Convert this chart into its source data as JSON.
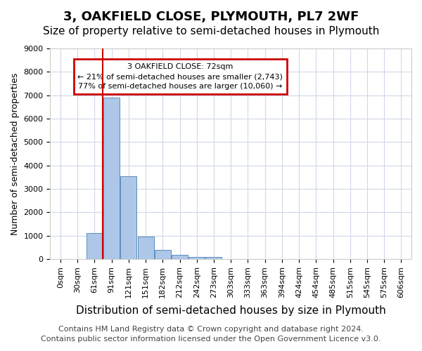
{
  "title1": "3, OAKFIELD CLOSE, PLYMOUTH, PL7 2WF",
  "title2": "Size of property relative to semi-detached houses in Plymouth",
  "xlabel": "Distribution of semi-detached houses by size in Plymouth",
  "ylabel": "Number of semi-detached properties",
  "categories": [
    "0sqm",
    "30sqm",
    "61sqm",
    "91sqm",
    "121sqm",
    "151sqm",
    "182sqm",
    "212sqm",
    "242sqm",
    "273sqm",
    "303sqm",
    "333sqm",
    "363sqm",
    "394sqm",
    "424sqm",
    "454sqm",
    "485sqm",
    "515sqm",
    "545sqm",
    "575sqm",
    "606sqm"
  ],
  "values": [
    0,
    0,
    1100,
    6900,
    3550,
    970,
    400,
    190,
    100,
    80,
    0,
    0,
    0,
    0,
    0,
    0,
    0,
    0,
    0,
    0,
    0
  ],
  "bar_color": "#aec6e8",
  "bar_edge_color": "#5a8fc0",
  "red_line_x": 2,
  "annotation_title": "3 OAKFIELD CLOSE: 72sqm",
  "annotation_line1": "← 21% of semi-detached houses are smaller (2,743)",
  "annotation_line2": "77% of semi-detached houses are larger (10,060) →",
  "annotation_box_color": "#ffffff",
  "annotation_box_edge_color": "#cc0000",
  "red_line_color": "#cc0000",
  "footer1": "Contains HM Land Registry data © Crown copyright and database right 2024.",
  "footer2": "Contains public sector information licensed under the Open Government Licence v3.0.",
  "ylim": [
    0,
    9000
  ],
  "yticks": [
    0,
    1000,
    2000,
    3000,
    4000,
    5000,
    6000,
    7000,
    8000,
    9000
  ],
  "bg_color": "#ffffff",
  "grid_color": "#d0d8e8",
  "title1_fontsize": 13,
  "title2_fontsize": 11,
  "xlabel_fontsize": 11,
  "ylabel_fontsize": 9,
  "tick_fontsize": 8,
  "footer_fontsize": 8
}
